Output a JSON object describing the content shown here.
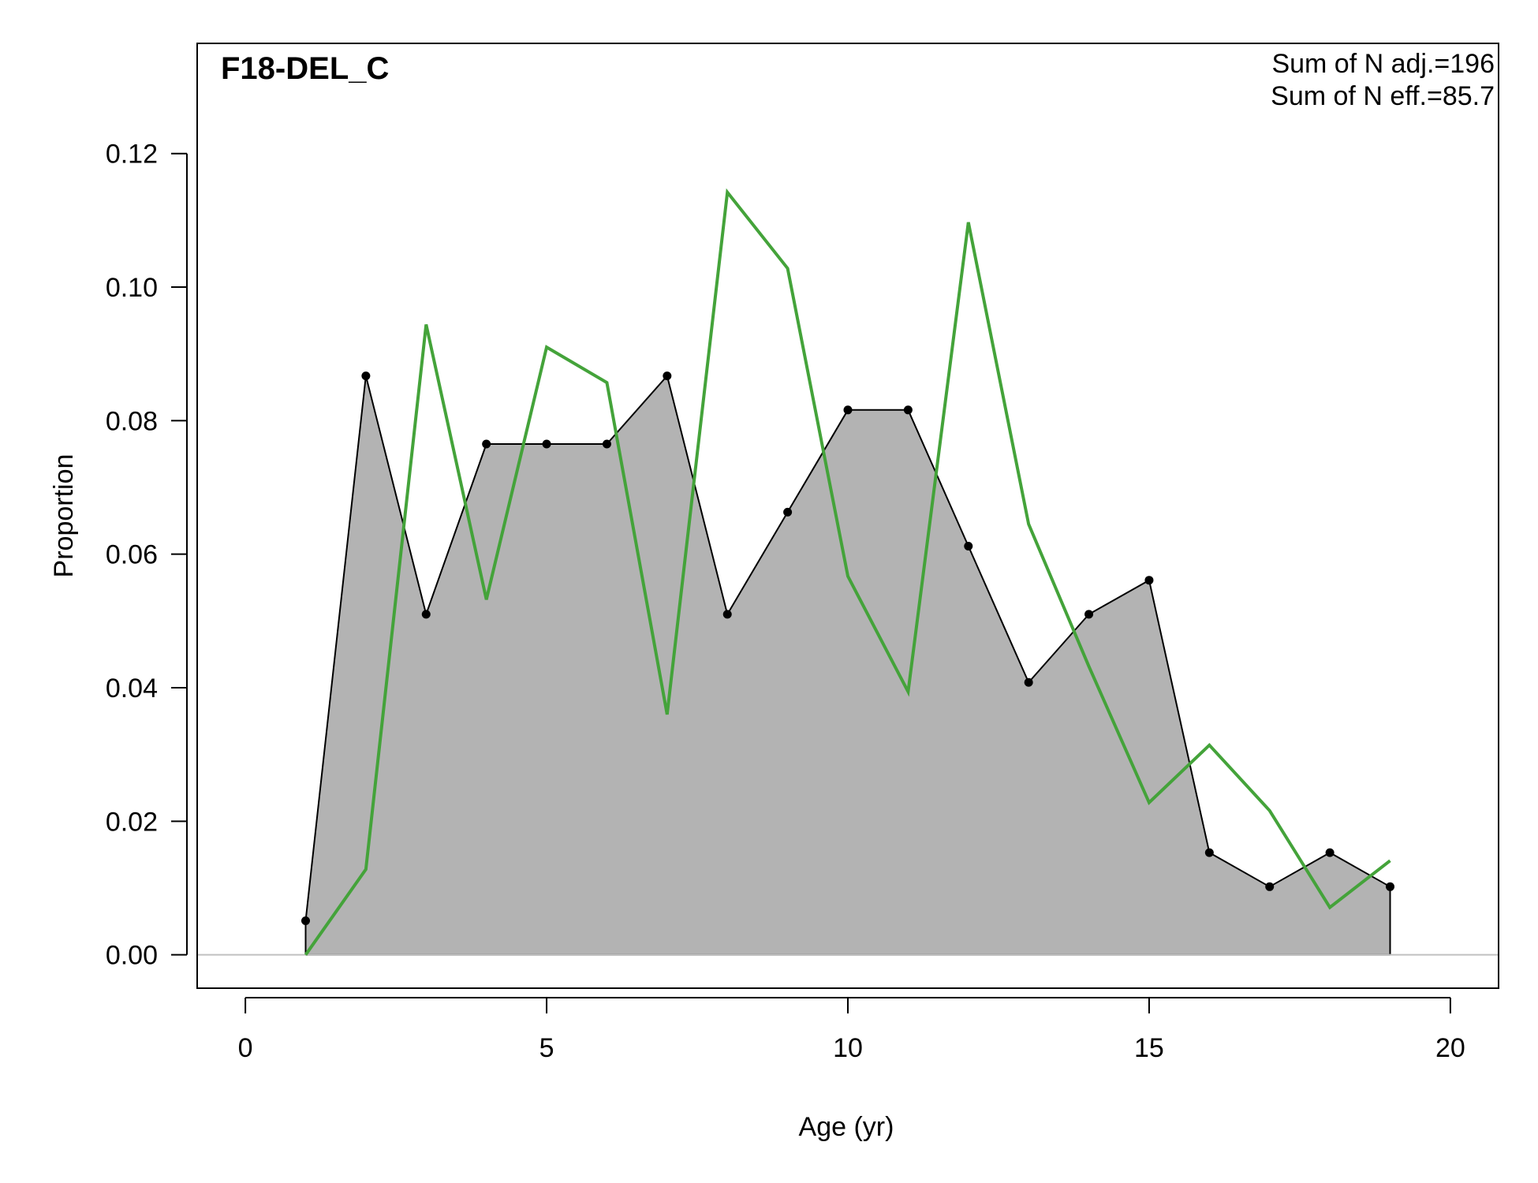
{
  "chart_data": {
    "type": "area",
    "title": "F18-DEL_C",
    "xlabel": "Age (yr)",
    "ylabel": "Proportion",
    "xlim": [
      -0.8,
      20.8
    ],
    "ylim": [
      -0.005,
      0.1365
    ],
    "x_ticks": [
      0,
      5,
      10,
      15,
      20
    ],
    "x_tick_labels": [
      "0",
      "5",
      "10",
      "15",
      "20"
    ],
    "y_ticks": [
      0.0,
      0.02,
      0.04,
      0.06,
      0.08,
      0.1,
      0.12
    ],
    "y_tick_labels": [
      "0.00",
      "0.02",
      "0.04",
      "0.06",
      "0.08",
      "0.10",
      "0.12"
    ],
    "grid": false,
    "annotations": [
      "Sum of N adj.=196",
      "Sum of N eff.=85.7"
    ],
    "series": [
      {
        "style": "filled-area-with-points",
        "color": "#000000",
        "fill": "#b3b3b3",
        "x": [
          1,
          2,
          3,
          4,
          5,
          6,
          7,
          8,
          9,
          10,
          11,
          12,
          13,
          14,
          15,
          16,
          17,
          18,
          19
        ],
        "values": [
          0.0051,
          0.0867,
          0.051,
          0.0765,
          0.0765,
          0.0765,
          0.0867,
          0.051,
          0.0663,
          0.0816,
          0.0816,
          0.0612,
          0.0408,
          0.051,
          0.0561,
          0.0153,
          0.0102,
          0.0153,
          0.0102
        ]
      },
      {
        "style": "line",
        "color": "#44a33a",
        "x": [
          1,
          2,
          3,
          4,
          5,
          6,
          7,
          8,
          9,
          10,
          11,
          12,
          13,
          14,
          15,
          16,
          17,
          18,
          19
        ],
        "values": [
          0.0,
          0.0128,
          0.0944,
          0.0532,
          0.091,
          0.0857,
          0.036,
          0.1142,
          0.1028,
          0.0567,
          0.0394,
          0.1097,
          0.0645,
          0.0432,
          0.0228,
          0.0314,
          0.0216,
          0.0071,
          0.0141
        ]
      }
    ],
    "baseline": {
      "y": 0,
      "color": "#c0c0c0"
    }
  }
}
